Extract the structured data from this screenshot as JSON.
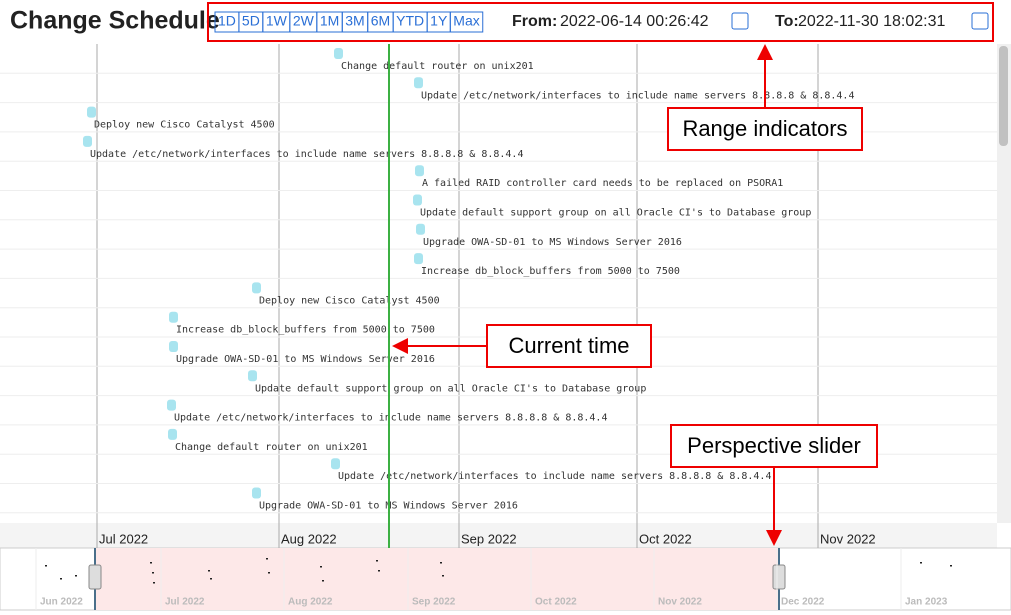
{
  "header": {
    "title": "Change Schedule",
    "ranges": [
      "1D",
      "5D",
      "1W",
      "2W",
      "1M",
      "3M",
      "6M",
      "YTD",
      "1Y",
      "Max"
    ],
    "from_label": "From:",
    "from_value": "2022-06-14 00:26:42",
    "to_label": "To:",
    "to_value": "2022-11-30 18:02:31"
  },
  "events": [
    "Change default router on unix201",
    "Update /etc/network/interfaces to include name servers 8.8.8.8 & 8.8.4.4",
    "Deploy new Cisco Catalyst 4500",
    "Update /etc/network/interfaces to include name servers 8.8.8.8 & 8.8.4.4",
    "A failed RAID controller card needs to be replaced on PSORA1",
    "Update default support group on all Oracle CI's to Database group",
    "Upgrade OWA-SD-01 to MS Windows Server 2016",
    "Increase db_block_buffers from 5000 to 7500",
    "Deploy new Cisco Catalyst 4500",
    "Increase db_block_buffers from 5000 to 7500",
    "Upgrade OWA-SD-01 to MS Windows Server 2016",
    "Update default support group on all Oracle CI's to Database group",
    "Update /etc/network/interfaces to include name servers 8.8.8.8 & 8.8.4.4",
    "Change default router on unix201",
    "Update /etc/network/interfaces to include name servers 8.8.8.8 & 8.8.4.4",
    "Upgrade OWA-SD-01 to MS Windows Server 2016"
  ],
  "axis_months": [
    "Jul 2022",
    "Aug 2022",
    "Sep 2022",
    "Oct 2022",
    "Nov 2022"
  ],
  "navigator_months": [
    "Jun 2022",
    "Jul 2022",
    "Aug 2022",
    "Sep 2022",
    "Oct 2022",
    "Nov 2022",
    "Dec 2022",
    "Jan 2023"
  ],
  "annotations": {
    "range": "Range indicators",
    "current": "Current time",
    "slider": "Perspective slider"
  }
}
